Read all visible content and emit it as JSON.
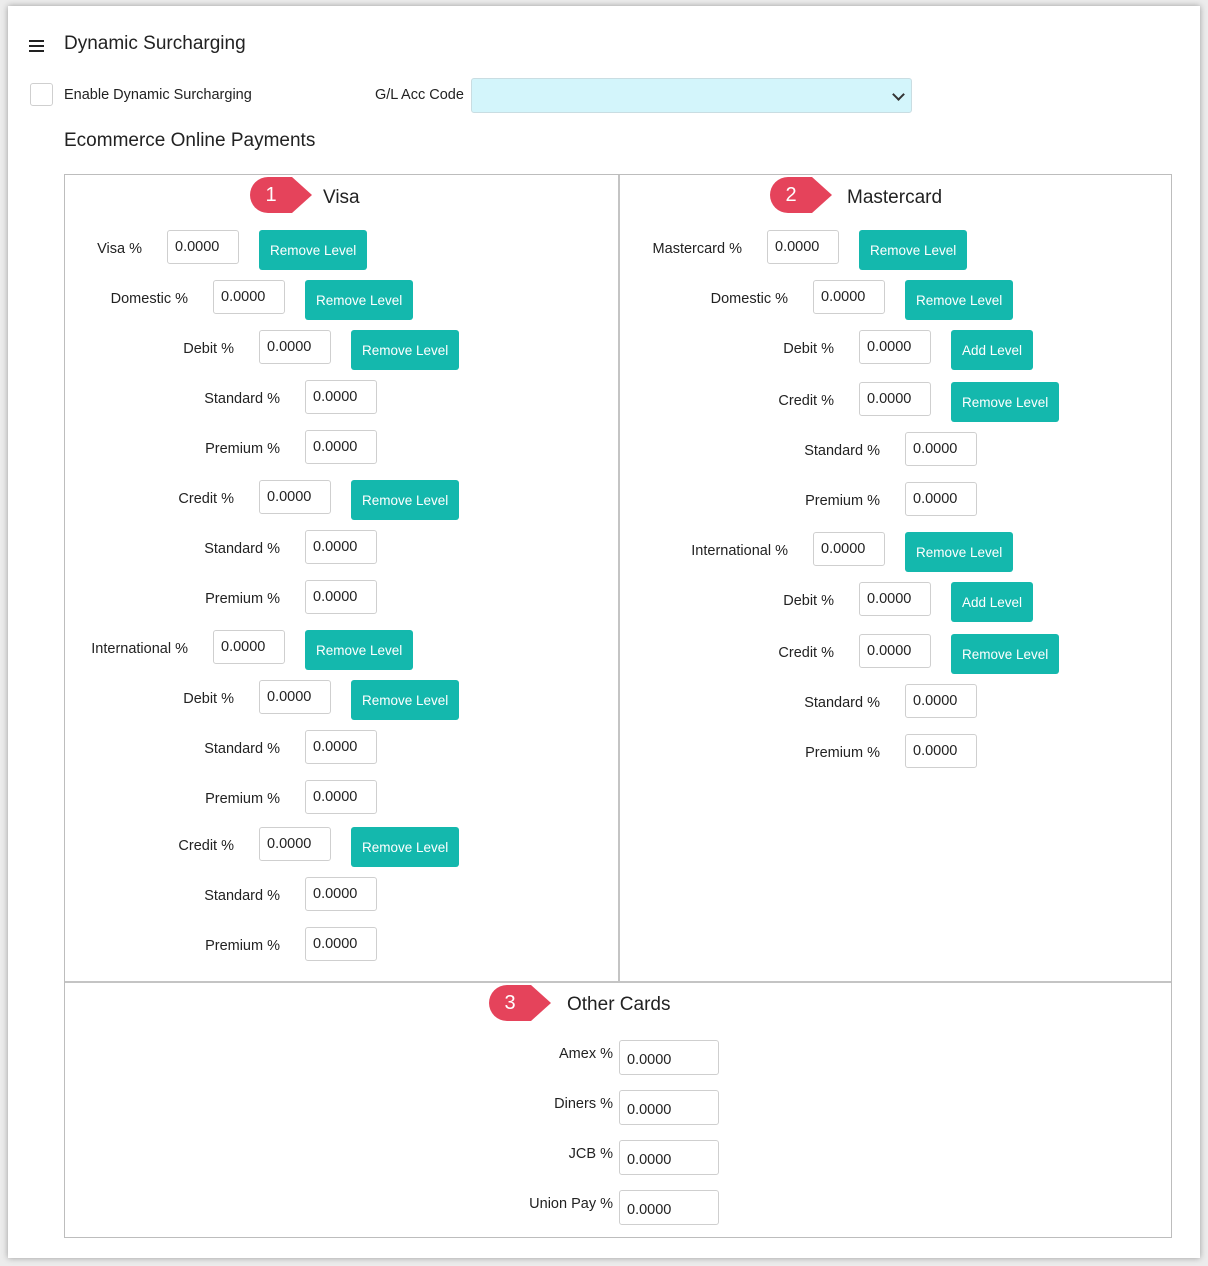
{
  "header": {
    "title": "Dynamic Surcharging",
    "menu_icon": "hamburger-menu-icon"
  },
  "settings": {
    "enable_label": "Enable Dynamic Surcharging",
    "enable_checked": false,
    "gl_label": "G/L Acc Code",
    "gl_value": ""
  },
  "section_title": "Ecommerce Online Payments",
  "colors": {
    "accent": "#14b8ad",
    "callout": "#e5435b",
    "select_bg": "#d3f5fb"
  },
  "callouts": [
    "1",
    "2",
    "3"
  ],
  "visa": {
    "title": "Visa",
    "rows": [
      {
        "label": "Visa %",
        "value": "0.0000",
        "button": "Remove Level"
      },
      {
        "label": "Domestic %",
        "value": "0.0000",
        "button": "Remove Level"
      },
      {
        "label": "Debit %",
        "value": "0.0000",
        "button": "Remove Level"
      },
      {
        "label": "Standard %",
        "value": "0.0000"
      },
      {
        "label": "Premium %",
        "value": "0.0000"
      },
      {
        "label": "Credit %",
        "value": "0.0000",
        "button": "Remove Level"
      },
      {
        "label": "Standard %",
        "value": "0.0000"
      },
      {
        "label": "Premium %",
        "value": "0.0000"
      },
      {
        "label": "International %",
        "value": "0.0000",
        "button": "Remove Level"
      },
      {
        "label": "Debit %",
        "value": "0.0000",
        "button": "Remove Level"
      },
      {
        "label": "Standard %",
        "value": "0.0000"
      },
      {
        "label": "Premium %",
        "value": "0.0000"
      },
      {
        "label": "Credit %",
        "value": "0.0000",
        "button": "Remove Level"
      },
      {
        "label": "Standard %",
        "value": "0.0000"
      },
      {
        "label": "Premium %",
        "value": "0.0000"
      }
    ]
  },
  "mastercard": {
    "title": "Mastercard",
    "rows": [
      {
        "label": "Mastercard %",
        "value": "0.0000",
        "button": "Remove Level"
      },
      {
        "label": "Domestic %",
        "value": "0.0000",
        "button": "Remove Level"
      },
      {
        "label": "Debit %",
        "value": "0.0000",
        "button": "Add Level"
      },
      {
        "label": "Credit %",
        "value": "0.0000",
        "button": "Remove Level"
      },
      {
        "label": "Standard %",
        "value": "0.0000"
      },
      {
        "label": "Premium %",
        "value": "0.0000"
      },
      {
        "label": "International %",
        "value": "0.0000",
        "button": "Remove Level"
      },
      {
        "label": "Debit %",
        "value": "0.0000",
        "button": "Add Level"
      },
      {
        "label": "Credit %",
        "value": "0.0000",
        "button": "Remove Level"
      },
      {
        "label": "Standard %",
        "value": "0.0000"
      },
      {
        "label": "Premium %",
        "value": "0.0000"
      }
    ]
  },
  "other_cards": {
    "title": "Other Cards",
    "rows": [
      {
        "label": "Amex %",
        "value": "0.0000"
      },
      {
        "label": "Diners %",
        "value": "0.0000"
      },
      {
        "label": "JCB %",
        "value": "0.0000"
      },
      {
        "label": "Union Pay %",
        "value": "0.0000"
      }
    ]
  }
}
